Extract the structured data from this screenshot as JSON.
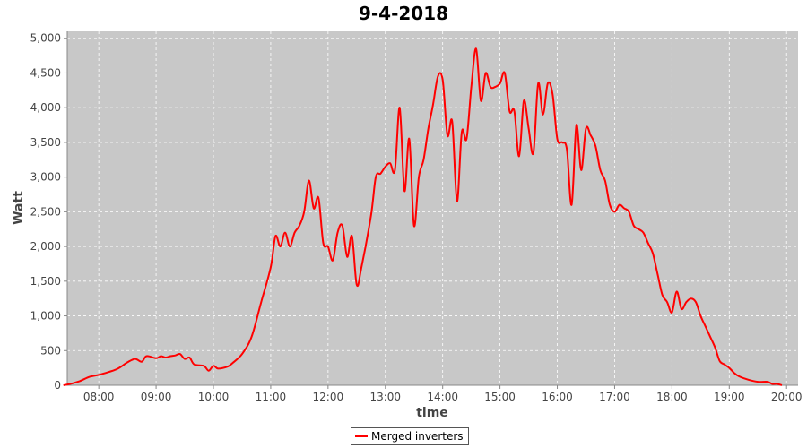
{
  "chart_data": {
    "type": "line",
    "title": "9-4-2018",
    "xlabel": "time",
    "ylabel": "Watt",
    "x_ticks": [
      "08:00",
      "09:00",
      "10:00",
      "11:00",
      "12:00",
      "13:00",
      "14:00",
      "15:00",
      "16:00",
      "17:00",
      "18:00",
      "19:00",
      "20:00"
    ],
    "y_ticks": [
      "0",
      "500",
      "1,000",
      "1,500",
      "2,000",
      "2,500",
      "3,000",
      "3,500",
      "4,000",
      "4,500",
      "5,000"
    ],
    "xlim": [
      "07:27",
      "20:12"
    ],
    "ylim": [
      0,
      5100
    ],
    "grid": true,
    "legend_position": "bottom-center",
    "background_color": "#c8c8c8",
    "grid_color": "#ffffff",
    "series": [
      {
        "name": "Merged inverters",
        "color": "#ff0000",
        "points": [
          [
            "07:23",
            0
          ],
          [
            "07:30",
            20
          ],
          [
            "07:40",
            60
          ],
          [
            "07:50",
            120
          ],
          [
            "08:00",
            150
          ],
          [
            "08:10",
            190
          ],
          [
            "08:20",
            240
          ],
          [
            "08:30",
            330
          ],
          [
            "08:38",
            380
          ],
          [
            "08:45",
            340
          ],
          [
            "08:50",
            420
          ],
          [
            "09:00",
            390
          ],
          [
            "09:05",
            420
          ],
          [
            "09:10",
            400
          ],
          [
            "09:15",
            420
          ],
          [
            "09:20",
            430
          ],
          [
            "09:25",
            450
          ],
          [
            "09:30",
            380
          ],
          [
            "09:35",
            400
          ],
          [
            "09:40",
            300
          ],
          [
            "09:50",
            280
          ],
          [
            "09:55",
            210
          ],
          [
            "10:00",
            280
          ],
          [
            "10:05",
            240
          ],
          [
            "10:15",
            270
          ],
          [
            "10:20",
            320
          ],
          [
            "10:30",
            450
          ],
          [
            "10:40",
            700
          ],
          [
            "10:50",
            1200
          ],
          [
            "11:00",
            1700
          ],
          [
            "11:05",
            2150
          ],
          [
            "11:10",
            2000
          ],
          [
            "11:15",
            2200
          ],
          [
            "11:20",
            2000
          ],
          [
            "11:25",
            2200
          ],
          [
            "11:30",
            2300
          ],
          [
            "11:35",
            2500
          ],
          [
            "11:40",
            2950
          ],
          [
            "11:45",
            2550
          ],
          [
            "11:50",
            2700
          ],
          [
            "11:55",
            2050
          ],
          [
            "12:00",
            2000
          ],
          [
            "12:05",
            1800
          ],
          [
            "12:10",
            2200
          ],
          [
            "12:15",
            2300
          ],
          [
            "12:20",
            1850
          ],
          [
            "12:25",
            2150
          ],
          [
            "12:30",
            1450
          ],
          [
            "12:35",
            1700
          ],
          [
            "12:45",
            2450
          ],
          [
            "12:50",
            3000
          ],
          [
            "12:55",
            3050
          ],
          [
            "13:00",
            3150
          ],
          [
            "13:05",
            3200
          ],
          [
            "13:10",
            3100
          ],
          [
            "13:15",
            4000
          ],
          [
            "13:20",
            2800
          ],
          [
            "13:25",
            3550
          ],
          [
            "13:30",
            2300
          ],
          [
            "13:35",
            3000
          ],
          [
            "13:40",
            3250
          ],
          [
            "13:45",
            3700
          ],
          [
            "13:50",
            4050
          ],
          [
            "13:55",
            4450
          ],
          [
            "14:00",
            4400
          ],
          [
            "14:05",
            3600
          ],
          [
            "14:10",
            3800
          ],
          [
            "14:15",
            2650
          ],
          [
            "14:20",
            3650
          ],
          [
            "14:25",
            3550
          ],
          [
            "14:30",
            4300
          ],
          [
            "14:35",
            4850
          ],
          [
            "14:40",
            4100
          ],
          [
            "14:45",
            4500
          ],
          [
            "14:50",
            4300
          ],
          [
            "14:55",
            4300
          ],
          [
            "15:00",
            4350
          ],
          [
            "15:05",
            4500
          ],
          [
            "15:10",
            3950
          ],
          [
            "15:15",
            3950
          ],
          [
            "15:20",
            3300
          ],
          [
            "15:25",
            4100
          ],
          [
            "15:30",
            3700
          ],
          [
            "15:35",
            3350
          ],
          [
            "15:40",
            4350
          ],
          [
            "15:45",
            3900
          ],
          [
            "15:50",
            4350
          ],
          [
            "15:55",
            4200
          ],
          [
            "16:00",
            3550
          ],
          [
            "16:05",
            3500
          ],
          [
            "16:10",
            3400
          ],
          [
            "16:15",
            2600
          ],
          [
            "16:20",
            3750
          ],
          [
            "16:25",
            3100
          ],
          [
            "16:30",
            3700
          ],
          [
            "16:35",
            3600
          ],
          [
            "16:40",
            3450
          ],
          [
            "16:45",
            3100
          ],
          [
            "16:50",
            2950
          ],
          [
            "16:55",
            2600
          ],
          [
            "17:00",
            2500
          ],
          [
            "17:05",
            2600
          ],
          [
            "17:10",
            2550
          ],
          [
            "17:15",
            2500
          ],
          [
            "17:20",
            2300
          ],
          [
            "17:25",
            2250
          ],
          [
            "17:30",
            2200
          ],
          [
            "17:35",
            2050
          ],
          [
            "17:40",
            1900
          ],
          [
            "17:45",
            1600
          ],
          [
            "17:50",
            1300
          ],
          [
            "17:55",
            1200
          ],
          [
            "18:00",
            1050
          ],
          [
            "18:05",
            1350
          ],
          [
            "18:10",
            1100
          ],
          [
            "18:15",
            1200
          ],
          [
            "18:20",
            1250
          ],
          [
            "18:25",
            1200
          ],
          [
            "18:30",
            1000
          ],
          [
            "18:35",
            850
          ],
          [
            "18:40",
            700
          ],
          [
            "18:45",
            550
          ],
          [
            "18:50",
            350
          ],
          [
            "18:55",
            300
          ],
          [
            "19:00",
            250
          ],
          [
            "19:05",
            180
          ],
          [
            "19:10",
            130
          ],
          [
            "19:20",
            80
          ],
          [
            "19:30",
            50
          ],
          [
            "19:40",
            50
          ],
          [
            "19:45",
            20
          ],
          [
            "19:50",
            20
          ],
          [
            "19:55",
            0
          ]
        ]
      }
    ]
  }
}
